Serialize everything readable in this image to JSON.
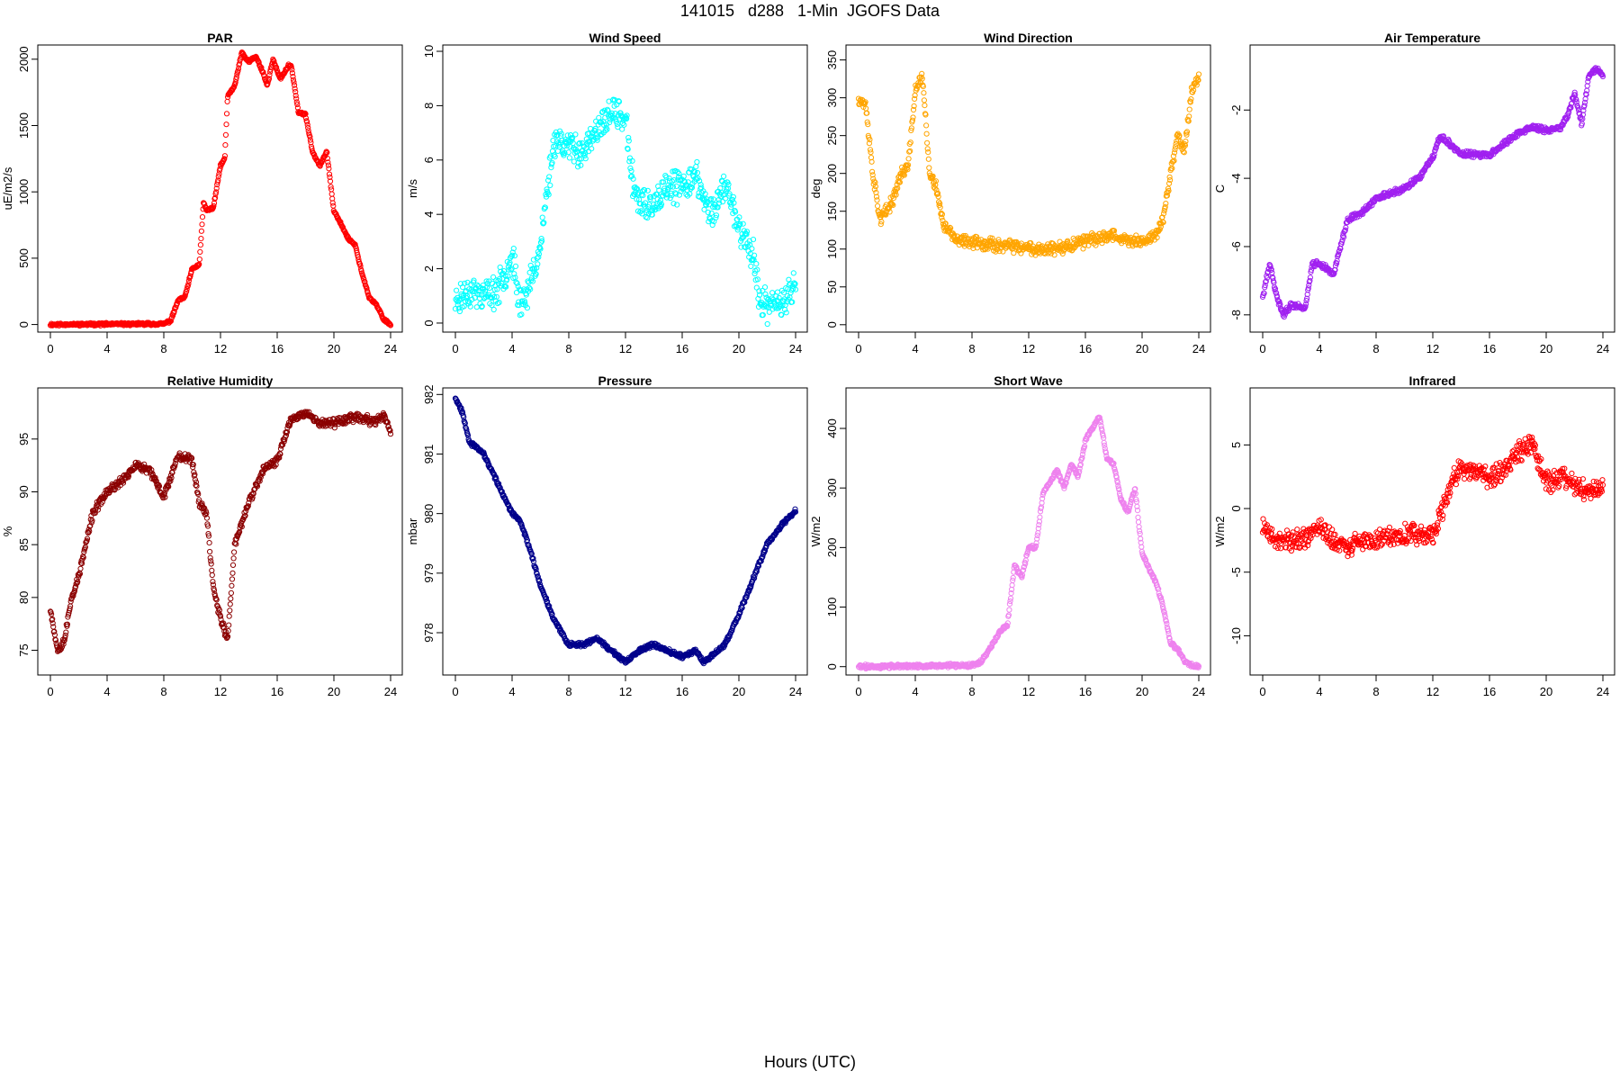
{
  "title": "141015   d288   1-Min  JGOFS Data",
  "x_caption": "Hours (UTC)",
  "chart_data": [
    {
      "type": "scatter",
      "title": "PAR",
      "ylabel": "uE/m2/s",
      "color": "#ff0000",
      "xlim": [
        0,
        24
      ],
      "ylim": [
        -30,
        2080
      ],
      "xticks": [
        0,
        4,
        8,
        12,
        16,
        20,
        24
      ],
      "yticks": [
        0,
        500,
        1000,
        1500,
        2000
      ],
      "noise": 12,
      "seed": 11,
      "x": [
        0,
        8,
        8.5,
        9,
        9.5,
        10,
        10.5,
        10.8,
        11,
        11.5,
        12,
        12.3,
        12.5,
        13,
        13.5,
        14,
        14.5,
        15,
        15.3,
        15.7,
        16.2,
        16.8,
        17,
        17.5,
        18,
        18.5,
        19,
        19.5,
        20,
        20.3,
        21,
        21.5,
        22,
        22.5,
        23,
        23.5,
        24
      ],
      "y": [
        0,
        5,
        30,
        180,
        210,
        420,
        450,
        920,
        860,
        880,
        1200,
        1250,
        1720,
        1800,
        2050,
        1980,
        2020,
        1900,
        1800,
        2000,
        1850,
        1950,
        1950,
        1600,
        1580,
        1300,
        1200,
        1300,
        850,
        800,
        650,
        600,
        380,
        200,
        150,
        40,
        0
      ]
    },
    {
      "type": "scatter",
      "title": "Wind Speed",
      "ylabel": "m/s",
      "color": "#00ffff",
      "xlim": [
        0,
        24
      ],
      "ylim": [
        -0.2,
        10.1
      ],
      "xticks": [
        0,
        4,
        8,
        12,
        16,
        20,
        24
      ],
      "yticks": [
        0,
        2,
        4,
        6,
        8,
        10
      ],
      "noise": 0.7,
      "seed": 23,
      "x": [
        0,
        1,
        2,
        3,
        4,
        4.5,
        5,
        6,
        6.5,
        7,
        8,
        9,
        10,
        11,
        12,
        12.5,
        13,
        14,
        15,
        16,
        17,
        17.5,
        18,
        19,
        19.5,
        20,
        21,
        21.5,
        22,
        23,
        24
      ],
      "y": [
        0.8,
        1.2,
        1.0,
        1.2,
        2.5,
        0.8,
        1.0,
        2.8,
        5.0,
        6.8,
        6.5,
        6.3,
        7.0,
        7.8,
        7.5,
        5.2,
        4.5,
        4.2,
        5.0,
        5.0,
        5.5,
        4.5,
        4.0,
        5.0,
        4.5,
        3.5,
        2.5,
        0.8,
        0.6,
        0.8,
        1.5
      ]
    },
    {
      "type": "scatter",
      "title": "Wind Direction",
      "ylabel": "deg",
      "color": "#ffa500",
      "xlim": [
        0,
        24
      ],
      "ylim": [
        -5,
        365
      ],
      "xticks": [
        0,
        4,
        8,
        12,
        16,
        20,
        24
      ],
      "yticks": [
        0,
        50,
        100,
        150,
        200,
        250,
        300,
        350
      ],
      "noise": 10,
      "seed": 37,
      "x": [
        0,
        0.5,
        1,
        1.5,
        2,
        2.5,
        3,
        3.5,
        4,
        4.5,
        5,
        5.5,
        6,
        7,
        8,
        10,
        12,
        14,
        16,
        18,
        19,
        20,
        21,
        21.5,
        22,
        22.5,
        23,
        23.5,
        24
      ],
      "y": [
        300,
        290,
        200,
        140,
        150,
        170,
        200,
        210,
        310,
        330,
        200,
        180,
        130,
        110,
        110,
        105,
        100,
        100,
        110,
        120,
        110,
        110,
        120,
        140,
        200,
        250,
        230,
        310,
        330
      ]
    },
    {
      "type": "scatter",
      "title": "Air Temperature",
      "ylabel": "C",
      "color": "#a020f0",
      "xlim": [
        0,
        24
      ],
      "ylim": [
        -8.4,
        -0.2
      ],
      "xticks": [
        0,
        4,
        8,
        12,
        16,
        20,
        24
      ],
      "yticks": [
        -8,
        -6,
        -4,
        -2
      ],
      "noise": 0.1,
      "seed": 41,
      "x": [
        0,
        0.5,
        1,
        1.5,
        2,
        3,
        3.5,
        4,
        5,
        6,
        7,
        8,
        10,
        11,
        12,
        12.5,
        13,
        14,
        15,
        16,
        17,
        18,
        19,
        20,
        21,
        21.5,
        22,
        22.5,
        23,
        23.5,
        24
      ],
      "y": [
        -7.5,
        -6.5,
        -7.5,
        -8.0,
        -7.7,
        -7.8,
        -6.5,
        -6.5,
        -6.8,
        -5.2,
        -5.0,
        -4.6,
        -4.3,
        -4.0,
        -3.4,
        -2.8,
        -2.9,
        -3.3,
        -3.3,
        -3.3,
        -3.0,
        -2.7,
        -2.5,
        -2.6,
        -2.5,
        -2.2,
        -1.5,
        -2.4,
        -1.0,
        -0.8,
        -1.0
      ]
    },
    {
      "type": "scatter",
      "title": "Relative Humidity",
      "ylabel": "%",
      "color": "#8b0000",
      "xlim": [
        0,
        24
      ],
      "ylim": [
        73,
        99.5
      ],
      "xticks": [
        0,
        4,
        8,
        12,
        16,
        20,
        24
      ],
      "yticks": [
        75,
        80,
        85,
        90,
        95
      ],
      "noise": 0.5,
      "seed": 53,
      "x": [
        0,
        0.5,
        1,
        1.5,
        2,
        3,
        4,
        5,
        6,
        7,
        8,
        9,
        10,
        10.5,
        11,
        11.5,
        12,
        12.5,
        13,
        14,
        15,
        16,
        17,
        18,
        19,
        20,
        21,
        22,
        23,
        23.5,
        24
      ],
      "y": [
        79,
        75,
        76,
        80,
        82,
        88,
        90,
        91,
        92.5,
        92,
        89.5,
        93.5,
        93,
        89,
        88,
        81,
        78,
        76,
        85,
        89,
        92,
        93,
        97,
        97.5,
        96.5,
        96.5,
        97,
        97,
        96.5,
        97.5,
        95.5
      ]
    },
    {
      "type": "scatter",
      "title": "Pressure",
      "ylabel": "mbar",
      "color": "#00008b",
      "xlim": [
        0,
        24
      ],
      "ylim": [
        977.35,
        982.05
      ],
      "xticks": [
        0,
        4,
        8,
        12,
        16,
        20,
        24
      ],
      "yticks": [
        978,
        979,
        980,
        981,
        982
      ],
      "noise": 0.04,
      "seed": 67,
      "x": [
        0,
        0.5,
        1,
        2,
        3,
        4,
        4.5,
        5,
        6,
        7,
        8,
        9,
        10,
        11,
        12,
        13,
        14,
        15,
        16,
        17,
        17.5,
        18,
        19,
        20,
        21,
        22,
        23,
        24
      ],
      "y": [
        981.95,
        981.7,
        981.2,
        981.0,
        980.5,
        980.0,
        979.9,
        979.6,
        978.8,
        978.2,
        977.8,
        977.8,
        977.9,
        977.7,
        977.5,
        977.7,
        977.8,
        977.7,
        977.6,
        977.7,
        977.5,
        977.6,
        977.8,
        978.3,
        978.9,
        979.5,
        979.8,
        980.05
      ]
    },
    {
      "type": "scatter",
      "title": "Short Wave",
      "ylabel": "W/m2",
      "color": "#ee82ee",
      "xlim": [
        0,
        24
      ],
      "ylim": [
        -8,
        462
      ],
      "xticks": [
        0,
        4,
        8,
        12,
        16,
        20,
        24
      ],
      "yticks": [
        0,
        100,
        200,
        300,
        400
      ],
      "noise": 4,
      "seed": 71,
      "x": [
        0,
        8,
        8.5,
        9,
        10,
        10.5,
        11,
        11.5,
        12,
        12.5,
        13,
        13.5,
        14,
        14.5,
        15,
        15.5,
        16,
        17,
        17.5,
        18,
        18.5,
        19,
        19.5,
        20,
        21,
        21.5,
        22,
        22.5,
        23,
        23.5,
        24
      ],
      "y": [
        0,
        2,
        5,
        20,
        60,
        70,
        170,
        150,
        200,
        200,
        290,
        310,
        330,
        300,
        340,
        320,
        380,
        420,
        350,
        340,
        280,
        260,
        300,
        190,
        140,
        100,
        40,
        30,
        10,
        2,
        0
      ]
    },
    {
      "type": "scatter",
      "title": "Infrared",
      "ylabel": "W/m2",
      "color": "#ff0000",
      "xlim": [
        0,
        24
      ],
      "ylim": [
        -12.8,
        9.2
      ],
      "xticks": [
        0,
        4,
        8,
        12,
        16,
        20,
        24
      ],
      "yticks": [
        -10,
        -5,
        0,
        5
      ],
      "noise": 1.0,
      "seed": 89,
      "x": [
        0,
        1,
        2,
        3,
        4,
        5,
        6,
        7,
        8,
        9,
        10,
        11,
        12,
        13,
        13.5,
        14,
        15,
        16,
        17,
        18,
        19,
        20,
        21,
        22,
        23,
        24
      ],
      "y": [
        -1.5,
        -2.5,
        -2.5,
        -2.3,
        -1.5,
        -2.5,
        -3.0,
        -2.5,
        -2.5,
        -2.3,
        -2.0,
        -2.0,
        -2.3,
        1.0,
        2.5,
        3.0,
        3.0,
        2.5,
        3.0,
        4.5,
        5.0,
        2.0,
        2.5,
        2.0,
        1.5,
        1.5
      ]
    }
  ]
}
